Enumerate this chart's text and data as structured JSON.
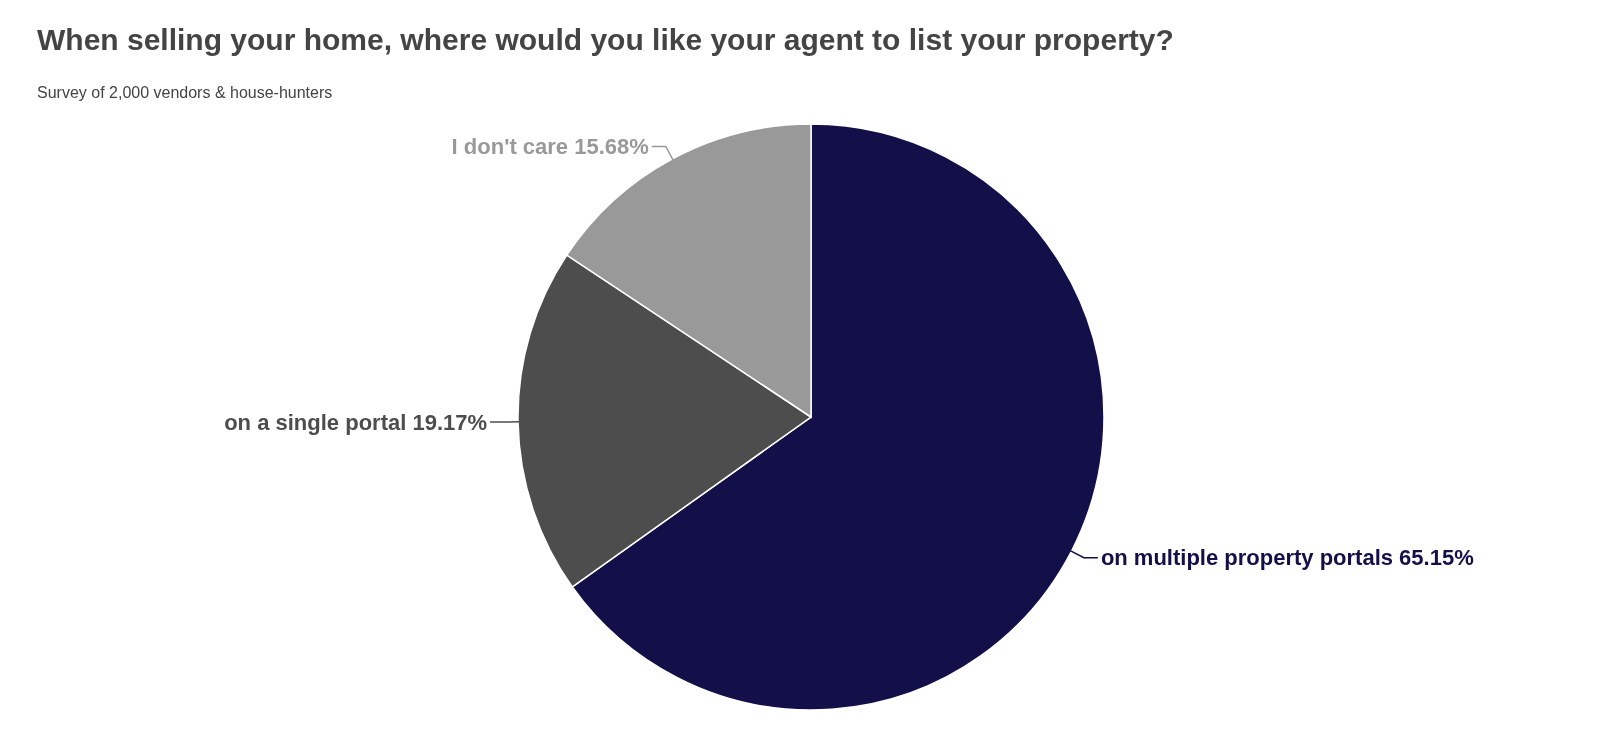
{
  "chart_data": {
    "type": "pie",
    "title": "When selling your home, where would you like your agent to list your property?",
    "subtitle": "Survey of 2,000 vendors & house-hunters",
    "categories": [
      "on multiple property portals",
      "on a single portal",
      "I don't care"
    ],
    "values": [
      65.15,
      19.17,
      15.68
    ],
    "colors": [
      "#130f49",
      "#4d4d4d",
      "#999999"
    ],
    "value_labels": [
      "65.15%",
      "19.17%",
      "15.68%"
    ]
  }
}
